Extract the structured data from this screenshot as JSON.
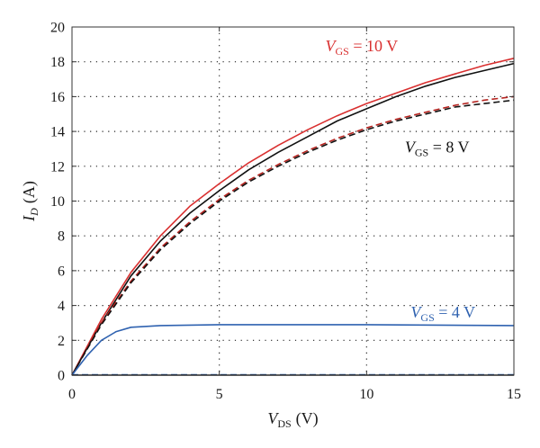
{
  "chart_data": {
    "type": "line",
    "title": "",
    "xlabel": {
      "main": "V",
      "sub": "DS",
      "unit": "(V)"
    },
    "ylabel": {
      "main": "I",
      "sub": "D",
      "unit": "(A)"
    },
    "xlim": [
      0,
      15
    ],
    "ylim": [
      0,
      20
    ],
    "xticks": [
      0,
      5,
      10,
      15
    ],
    "yticks": [
      0,
      2,
      4,
      6,
      8,
      10,
      12,
      14,
      16,
      18,
      20
    ],
    "grid": "dotted",
    "colors": {
      "red": "#d93030",
      "black": "#111111",
      "darkred": "#b5231f",
      "blue": "#2f62b0",
      "grid": "#222222",
      "axes": "#333333"
    },
    "series": [
      {
        "key": "vgs10-solid",
        "color": "red",
        "dash": false,
        "x": [
          0,
          1,
          2,
          3,
          4,
          5,
          6,
          7,
          8,
          9,
          10,
          11,
          12,
          13,
          14,
          15
        ],
        "y": [
          0,
          3.2,
          5.9,
          8.0,
          9.7,
          11.0,
          12.2,
          13.2,
          14.1,
          14.9,
          15.6,
          16.2,
          16.8,
          17.3,
          17.8,
          18.2
        ]
      },
      {
        "key": "vgs8-solid",
        "color": "black",
        "dash": false,
        "x": [
          0,
          1,
          2,
          3,
          4,
          5,
          6,
          7,
          8,
          9,
          10,
          11,
          12,
          13,
          14,
          15
        ],
        "y": [
          0,
          3.0,
          5.7,
          7.7,
          9.3,
          10.6,
          11.8,
          12.8,
          13.7,
          14.6,
          15.3,
          16.0,
          16.6,
          17.1,
          17.5,
          17.9
        ]
      },
      {
        "key": "vgs10-dashed",
        "color": "darkred",
        "dash": true,
        "x": [
          0,
          1,
          2,
          3,
          4,
          5,
          6,
          7,
          8,
          9,
          10,
          11,
          12,
          13,
          14,
          15
        ],
        "y": [
          0,
          3.0,
          5.4,
          7.3,
          8.8,
          10.1,
          11.2,
          12.1,
          12.9,
          13.6,
          14.2,
          14.7,
          15.1,
          15.5,
          15.8,
          16.0
        ]
      },
      {
        "key": "vgs8-dashed",
        "color": "black",
        "dash": true,
        "x": [
          0,
          1,
          2,
          3,
          4,
          5,
          6,
          7,
          8,
          9,
          10,
          11,
          12,
          13,
          14,
          15
        ],
        "y": [
          0,
          2.9,
          5.3,
          7.2,
          8.7,
          10.0,
          11.1,
          12.0,
          12.8,
          13.5,
          14.1,
          14.6,
          15.0,
          15.4,
          15.6,
          15.8
        ]
      },
      {
        "key": "vgs4-solid",
        "color": "blue",
        "dash": false,
        "x": [
          0,
          0.5,
          1,
          1.5,
          2,
          3,
          5,
          10,
          15
        ],
        "y": [
          0,
          1.1,
          2.0,
          2.5,
          2.75,
          2.85,
          2.9,
          2.9,
          2.85
        ]
      },
      {
        "key": "vgs4-dashed",
        "color": "blue",
        "dash": true,
        "x": [
          0,
          15
        ],
        "y": [
          0.02,
          0.02
        ]
      },
      {
        "key": "zero-solid",
        "color": "black",
        "dash": false,
        "x": [
          0,
          15
        ],
        "y": [
          0.0,
          0.0
        ]
      }
    ],
    "annotations": [
      {
        "key": "label-vgs10",
        "main": "V",
        "sub": "GS",
        "rest": " = 10 V",
        "color": "red",
        "x": 8.6,
        "y": 18.6
      },
      {
        "key": "label-vgs8",
        "main": "V",
        "sub": "GS",
        "rest": " = 8 V",
        "color": "black",
        "x": 11.3,
        "y": 12.8
      },
      {
        "key": "label-vgs4",
        "main": "V",
        "sub": "GS",
        "rest": " = 4 V",
        "color": "blue",
        "x": 11.5,
        "y": 3.3
      }
    ]
  }
}
